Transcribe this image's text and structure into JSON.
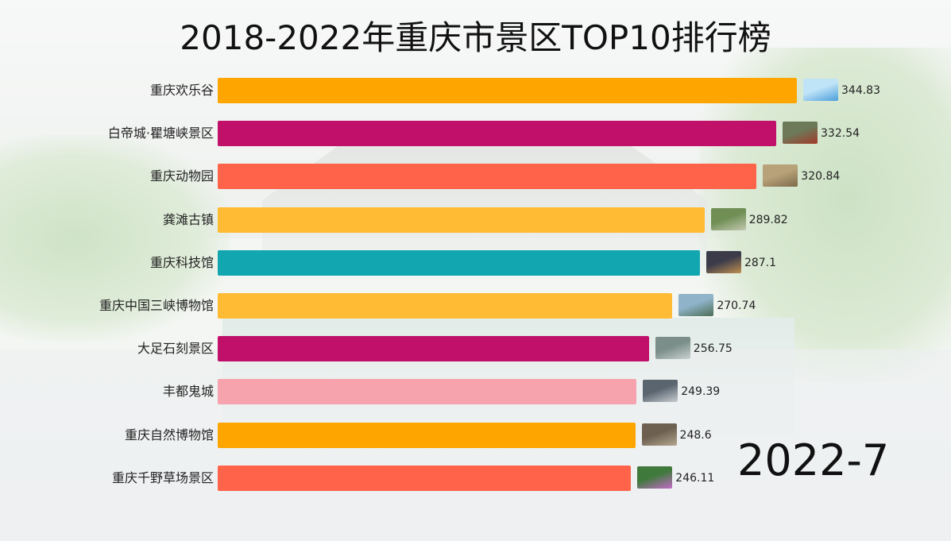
{
  "chart_data": {
    "type": "bar",
    "orientation": "horizontal",
    "title": "2018-2022年重庆市景区TOP10排行榜",
    "period": "2022-7",
    "categories": [
      "重庆欢乐谷",
      "白帝城·瞿塘峡景区",
      "重庆动物园",
      "龚滩古镇",
      "重庆科技馆",
      "重庆中国三峡博物馆",
      "大足石刻景区",
      "丰都鬼城",
      "重庆自然博物馆",
      "重庆千野草场景区"
    ],
    "values": [
      344.83,
      332.54,
      320.84,
      289.82,
      287.1,
      270.74,
      256.75,
      249.39,
      248.6,
      246.11
    ],
    "value_labels": [
      "344.83",
      "332.54",
      "320.84",
      "289.82",
      "287.1",
      "270.74",
      "256.75",
      "249.39",
      "248.6",
      "246.11"
    ],
    "colors": [
      "#fea500",
      "#c0106a",
      "#ff634a",
      "#ffbb33",
      "#12a7b0",
      "#ffbb33",
      "#c0106a",
      "#f7a3ad",
      "#fea500",
      "#ff634a"
    ],
    "thumb_colors": [
      [
        "#bfe3f7",
        "#4a9fdc"
      ],
      [
        "#6c7a5a",
        "#a33a2a"
      ],
      [
        "#b8a27a",
        "#7d6a4a"
      ],
      [
        "#6f8f55",
        "#c4c8b0"
      ],
      [
        "#3b3b4a",
        "#c09050"
      ],
      [
        "#8fb3c9",
        "#4d6e54"
      ],
      [
        "#7b8e8a",
        "#c9d2d0"
      ],
      [
        "#5a6570",
        "#c8ccd0"
      ],
      [
        "#6d6050",
        "#b4a890"
      ],
      [
        "#3f7a3c",
        "#c46ac8"
      ]
    ],
    "xlim": [
      0,
      344.83
    ],
    "legend": "none",
    "grid": false
  }
}
